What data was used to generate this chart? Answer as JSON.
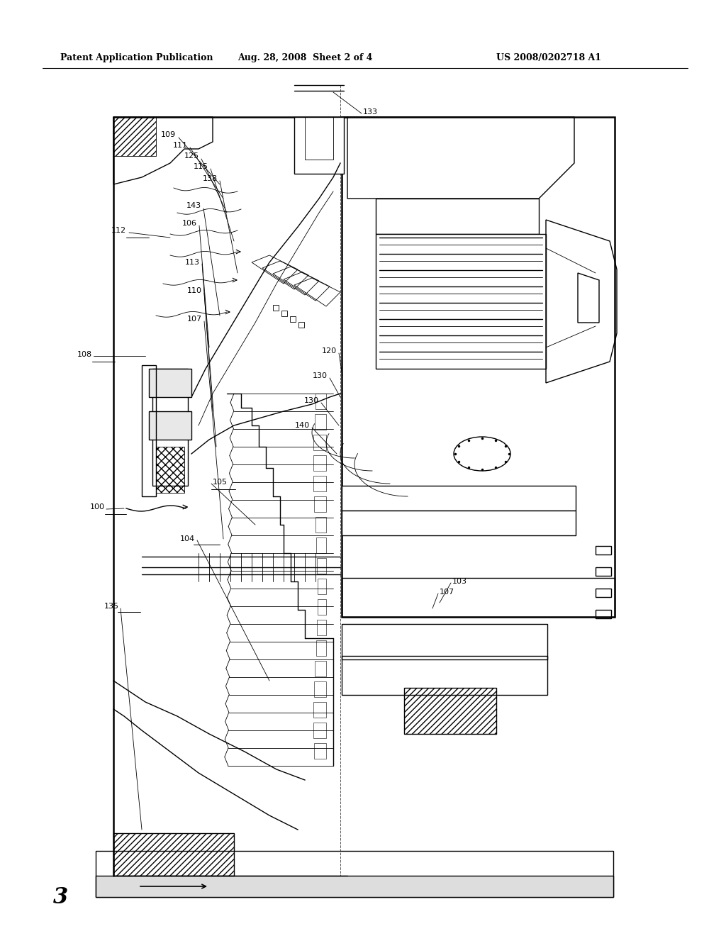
{
  "header_left": "Patent Application Publication",
  "header_mid": "Aug. 28, 2008  Sheet 2 of 4",
  "header_right": "US 2008/0202718 A1",
  "fig_label": "3",
  "bg_color": "#ffffff",
  "line_color": "#000000",
  "lw_main": 1.0,
  "lw_thin": 0.6,
  "lw_thick": 1.8,
  "header_fontsize": 9,
  "label_fontsize": 8,
  "fig_fontsize": 22
}
